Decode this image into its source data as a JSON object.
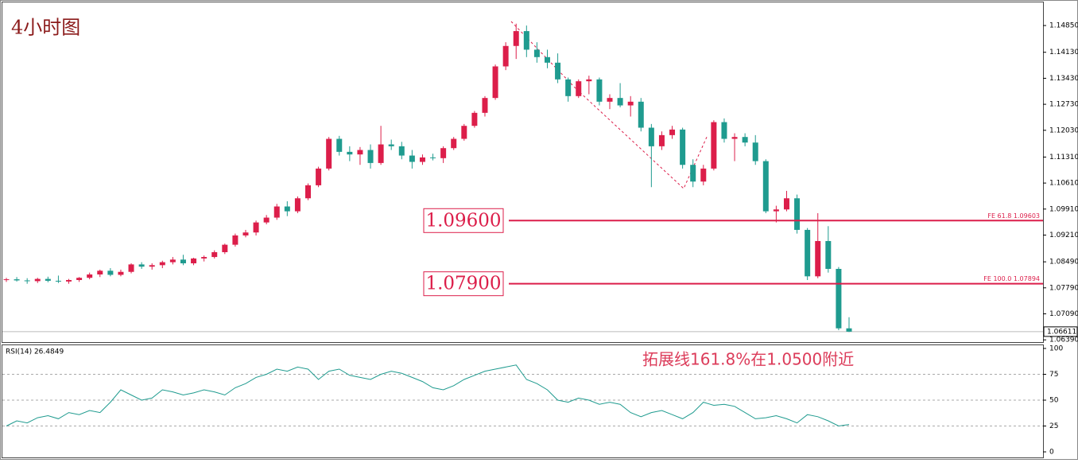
{
  "chart_data": {
    "type": "candlestick",
    "title": "4小时图",
    "annotation": "拓展线161.8%在1.0500附近",
    "up_color": "#dc1e4a",
    "down_color": "#1f9b8f",
    "candles": [
      [
        1.08,
        1.0806,
        1.0795,
        1.0802
      ],
      [
        1.0802,
        1.0808,
        1.0796,
        1.0799
      ],
      [
        1.0799,
        1.0805,
        1.079,
        1.0797
      ],
      [
        1.0797,
        1.0806,
        1.0792,
        1.0803
      ],
      [
        1.0803,
        1.0809,
        1.0794,
        1.0798
      ],
      [
        1.0798,
        1.0812,
        1.0792,
        1.0796
      ],
      [
        1.0796,
        1.0803,
        1.079,
        1.08
      ],
      [
        1.08,
        1.0808,
        1.0795,
        1.0806
      ],
      [
        1.0806,
        1.082,
        1.0802,
        1.0815
      ],
      [
        1.0815,
        1.0828,
        1.0808,
        1.0825
      ],
      [
        1.0825,
        1.0832,
        1.081,
        1.0814
      ],
      [
        1.0814,
        1.0828,
        1.081,
        1.0822
      ],
      [
        1.0822,
        1.0845,
        1.0818,
        1.0842
      ],
      [
        1.0842,
        1.0848,
        1.083,
        1.0836
      ],
      [
        1.0836,
        1.0845,
        1.0828,
        1.084
      ],
      [
        1.084,
        1.0852,
        1.0832,
        1.0848
      ],
      [
        1.0848,
        1.0862,
        1.0842,
        1.0855
      ],
      [
        1.0855,
        1.0868,
        1.084,
        1.0845
      ],
      [
        1.0845,
        1.086,
        1.084,
        1.0858
      ],
      [
        1.0858,
        1.0866,
        1.085,
        1.0862
      ],
      [
        1.0862,
        1.088,
        1.0858,
        1.0875
      ],
      [
        1.0875,
        1.0898,
        1.087,
        1.0895
      ],
      [
        1.0895,
        1.0925,
        1.089,
        1.092
      ],
      [
        1.092,
        1.0935,
        1.0915,
        1.0928
      ],
      [
        1.0928,
        1.096,
        1.092,
        1.0955
      ],
      [
        1.0955,
        1.0975,
        1.095,
        1.0968
      ],
      [
        1.0968,
        1.1005,
        1.0962,
        1.0998
      ],
      [
        1.0998,
        1.1012,
        1.0972,
        1.0985
      ],
      [
        1.0985,
        1.1025,
        1.098,
        1.102
      ],
      [
        1.102,
        1.106,
        1.1015,
        1.1055
      ],
      [
        1.1055,
        1.1105,
        1.105,
        1.11
      ],
      [
        1.11,
        1.1185,
        1.1095,
        1.118
      ],
      [
        1.118,
        1.1188,
        1.1135,
        1.1145
      ],
      [
        1.1145,
        1.116,
        1.112,
        1.1138
      ],
      [
        1.1138,
        1.1158,
        1.111,
        1.115
      ],
      [
        1.115,
        1.1165,
        1.11,
        1.1115
      ],
      [
        1.1115,
        1.1215,
        1.111,
        1.1165
      ],
      [
        1.1165,
        1.1178,
        1.115,
        1.116
      ],
      [
        1.116,
        1.1172,
        1.1125,
        1.1135
      ],
      [
        1.1135,
        1.115,
        1.11,
        1.1118
      ],
      [
        1.1118,
        1.1138,
        1.111,
        1.113
      ],
      [
        1.113,
        1.114,
        1.1122,
        1.1128
      ],
      [
        1.1128,
        1.116,
        1.1115,
        1.1155
      ],
      [
        1.1155,
        1.1185,
        1.115,
        1.118
      ],
      [
        1.118,
        1.122,
        1.1175,
        1.1215
      ],
      [
        1.1215,
        1.1255,
        1.121,
        1.125
      ],
      [
        1.125,
        1.1295,
        1.124,
        1.129
      ],
      [
        1.129,
        1.138,
        1.1285,
        1.1375
      ],
      [
        1.1375,
        1.144,
        1.1365,
        1.143
      ],
      [
        1.143,
        1.149,
        1.1395,
        1.147
      ],
      [
        1.147,
        1.1485,
        1.14,
        1.142
      ],
      [
        1.142,
        1.144,
        1.1385,
        1.14
      ],
      [
        1.14,
        1.142,
        1.137,
        1.1385
      ],
      [
        1.1385,
        1.141,
        1.133,
        1.134
      ],
      [
        1.134,
        1.1345,
        1.128,
        1.1295
      ],
      [
        1.1295,
        1.134,
        1.129,
        1.1335
      ],
      [
        1.1335,
        1.135,
        1.13,
        1.134
      ],
      [
        1.134,
        1.1345,
        1.127,
        1.128
      ],
      [
        1.128,
        1.13,
        1.126,
        1.129
      ],
      [
        1.129,
        1.133,
        1.1265,
        1.127
      ],
      [
        1.127,
        1.1295,
        1.124,
        1.128
      ],
      [
        1.128,
        1.129,
        1.12,
        1.121
      ],
      [
        1.121,
        1.122,
        1.105,
        1.116
      ],
      [
        1.116,
        1.12,
        1.115,
        1.119
      ],
      [
        1.119,
        1.1215,
        1.118,
        1.1205
      ],
      [
        1.1205,
        1.121,
        1.11,
        1.111
      ],
      [
        1.111,
        1.1125,
        1.105,
        1.1065
      ],
      [
        1.1065,
        1.111,
        1.1055,
        1.11
      ],
      [
        1.11,
        1.123,
        1.1095,
        1.1225
      ],
      [
        1.1225,
        1.1235,
        1.117,
        1.118
      ],
      [
        1.118,
        1.1195,
        1.112,
        1.1185
      ],
      [
        1.1185,
        1.1195,
        1.116,
        1.117
      ],
      [
        1.117,
        1.119,
        1.111,
        1.112
      ],
      [
        1.112,
        1.1125,
        1.098,
        1.0985
      ],
      [
        1.0985,
        1.1,
        1.0955,
        1.099
      ],
      [
        1.099,
        1.104,
        1.0985,
        1.102
      ],
      [
        1.102,
        1.103,
        1.0925,
        1.0935
      ],
      [
        1.0935,
        1.094,
        1.08,
        1.081
      ],
      [
        1.081,
        1.098,
        1.0805,
        1.0905
      ],
      [
        1.0905,
        1.0945,
        1.082,
        1.083
      ],
      [
        1.083,
        1.0835,
        1.0665,
        1.067
      ],
      [
        1.067,
        1.07,
        1.066,
        1.0661
      ]
    ],
    "ylim": [
      1.0633,
      1.1543
    ],
    "yticks": [
      {
        "value": 1.1485,
        "label": "1.14850"
      },
      {
        "value": 1.1413,
        "label": "1.14130"
      },
      {
        "value": 1.1343,
        "label": "1.13430"
      },
      {
        "value": 1.1273,
        "label": "1.12730"
      },
      {
        "value": 1.1203,
        "label": "1.12030"
      },
      {
        "value": 1.1131,
        "label": "1.11310"
      },
      {
        "value": 1.1061,
        "label": "1.10610"
      },
      {
        "value": 1.0991,
        "label": "1.09910"
      },
      {
        "value": 1.0921,
        "label": "1.09210"
      },
      {
        "value": 1.0849,
        "label": "1.08490"
      },
      {
        "value": 1.0779,
        "label": "1.07790"
      },
      {
        "value": 1.0709,
        "label": "1.07090"
      },
      {
        "value": 1.0639,
        "label": "1.06390"
      }
    ],
    "levels": [
      {
        "value": 1.096,
        "label": "1.09600",
        "fe_text": "FE 61.8  1.09603"
      },
      {
        "value": 1.079,
        "label": "1.07900",
        "fe_text": "FE 100.0  1.07894"
      }
    ],
    "last_price": {
      "value": 1.06611,
      "label": "1.06611"
    },
    "rsi": {
      "label": "RSI(14) 26.4849",
      "color": "#1f9b8f",
      "values": [
        25,
        30,
        28,
        33,
        35,
        32,
        38,
        36,
        40,
        38,
        48,
        60,
        55,
        50,
        52,
        60,
        58,
        55,
        57,
        60,
        58,
        55,
        62,
        66,
        72,
        75,
        80,
        78,
        82,
        80,
        70,
        78,
        80,
        74,
        72,
        70,
        75,
        78,
        76,
        72,
        68,
        62,
        60,
        64,
        70,
        74,
        78,
        80,
        82,
        84,
        70,
        66,
        60,
        50,
        48,
        52,
        50,
        46,
        48,
        46,
        38,
        34,
        38,
        40,
        36,
        32,
        38,
        48,
        45,
        46,
        44,
        38,
        32,
        33,
        35,
        32,
        28,
        36,
        34,
        30,
        25,
        26.4849
      ],
      "ylim": [
        0,
        100
      ],
      "yticks": [
        100,
        75,
        50,
        25,
        0
      ],
      "levels": [
        75,
        50,
        25
      ]
    }
  }
}
